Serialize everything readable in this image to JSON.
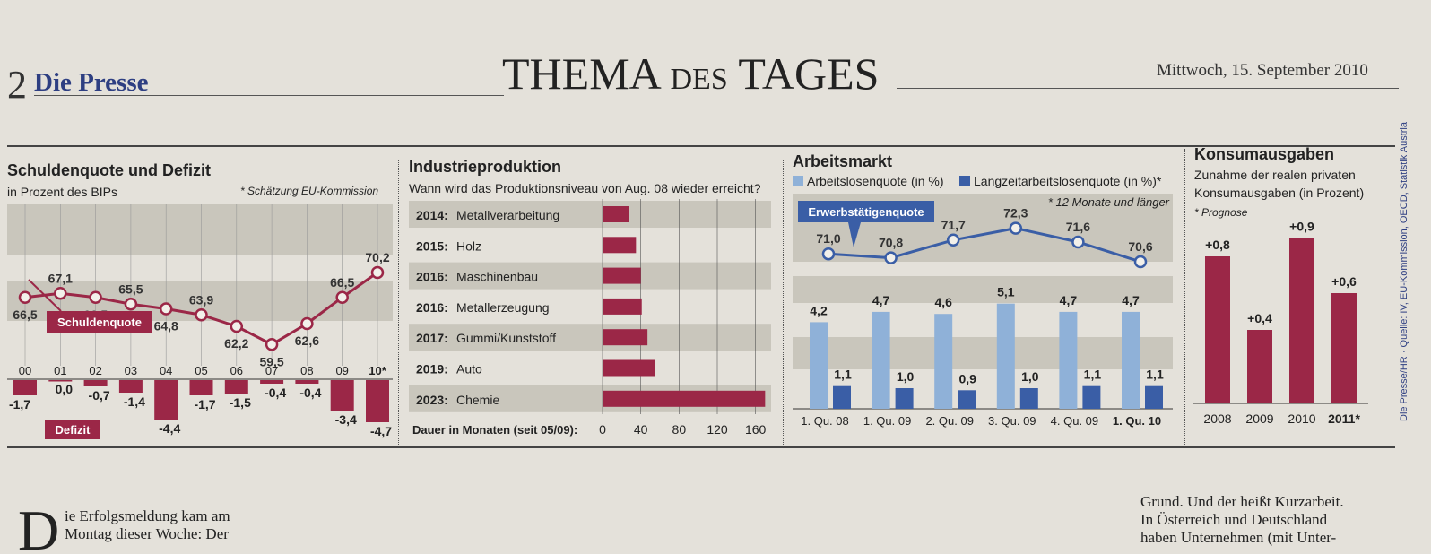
{
  "page": {
    "number": "2",
    "brand": "Die Presse",
    "section_a": "THEMA",
    "section_b": "DES",
    "section_c": "TAGES",
    "date": "Mittwoch, 15. September 2010"
  },
  "source_note": "Die Presse/HR · Quelle: IV, EU-Kommission, OECD, Statistik Austria",
  "colors": {
    "crimson": "#9b2747",
    "lightblue": "#8fb1d8",
    "darkblue": "#3a5ea6",
    "band": "#c9c6bc"
  },
  "chart_data": [
    {
      "type": "line",
      "title": "Schuldenquote und Defizit",
      "subtitle": "in Prozent des BIPs",
      "note": "* Schätzung EU-Kommission",
      "categories": [
        "00",
        "01",
        "02",
        "03",
        "04",
        "05",
        "06",
        "07",
        "08",
        "09",
        "10*"
      ],
      "series": [
        {
          "name": "Schuldenquote",
          "values": [
            66.5,
            67.1,
            66.5,
            65.5,
            64.8,
            63.9,
            62.2,
            59.5,
            62.6,
            66.5,
            70.2
          ],
          "labels": [
            "66,5",
            "67,1",
            "66,5",
            "65,5",
            "64,8",
            "63,9",
            "62,2",
            "59,5",
            "62,6",
            "66,5",
            "70,2"
          ]
        },
        {
          "name": "Defizit",
          "values": [
            -1.7,
            0.0,
            -0.7,
            -1.4,
            -4.4,
            -1.7,
            -1.5,
            -0.4,
            -0.4,
            -3.4,
            -4.7
          ],
          "labels": [
            "-1,7",
            "0,0",
            "-0,7",
            "-1,4",
            "-4,4",
            "-1,7",
            "-1,5",
            "-0,4",
            "-0,4",
            "-3,4",
            "-4,7"
          ]
        }
      ]
    },
    {
      "type": "bar",
      "title": "Industrieproduktion",
      "subtitle": "Wann wird das Produktionsniveau von Aug. 08 wieder erreicht?",
      "xlabel": "Dauer in Monaten (seit 05/09):",
      "xticks": [
        "0",
        "40",
        "80",
        "120",
        "160"
      ],
      "xlim": [
        0,
        180
      ],
      "years": [
        "2014:",
        "2015:",
        "2016:",
        "2016:",
        "2017:",
        "2019:",
        "2023:"
      ],
      "categories": [
        "Metallverarbeitung",
        "Holz",
        "Maschinenbau",
        "Metallerzeugung",
        "Gummi/Kunststoff",
        "Auto",
        "Chemie"
      ],
      "values": [
        28,
        35,
        40,
        41,
        47,
        55,
        170
      ]
    },
    {
      "type": "bar",
      "title": "Arbeitsmarkt",
      "legend": [
        "Arbeitslosenquote (in %)",
        "Langzeitarbeitslosenquote (in %)*"
      ],
      "note": "* 12 Monate und länger",
      "categories": [
        "1. Qu. 08",
        "1. Qu. 09",
        "2. Qu. 09",
        "3. Qu. 09",
        "4. Qu. 09",
        "1. Qu. 10"
      ],
      "series": [
        {
          "name": "Arbeitslosenquote (in %)",
          "values": [
            4.2,
            4.7,
            4.6,
            5.1,
            4.7,
            4.7
          ],
          "labels": [
            "4,2",
            "4,7",
            "4,6",
            "5,1",
            "4,7",
            "4,7"
          ]
        },
        {
          "name": "Langzeitarbeitslosenquote (in %)*",
          "values": [
            1.1,
            1.0,
            0.9,
            1.0,
            1.1,
            1.1
          ],
          "labels": [
            "1,1",
            "1,0",
            "0,9",
            "1,0",
            "1,1",
            "1,1"
          ]
        },
        {
          "name": "Erwerbstätigenquote",
          "values": [
            71.0,
            70.8,
            71.7,
            72.3,
            71.6,
            70.6
          ],
          "labels": [
            "71,0",
            "70,8",
            "71,7",
            "72,3",
            "71,6",
            "70,6"
          ]
        }
      ]
    },
    {
      "type": "bar",
      "title": "Konsumausgaben",
      "subtitle": "Zunahme der realen privaten Konsumausgaben (in Prozent)",
      "subtitle_lines": [
        "Zunahme der realen privaten",
        "Konsumausgaben (in Prozent)"
      ],
      "note": "* Prognose",
      "categories": [
        "2008",
        "2009",
        "2010",
        "2011*"
      ],
      "values": [
        0.8,
        0.4,
        0.9,
        0.6
      ],
      "labels": [
        "+0,8",
        "+0,4",
        "+0,9",
        "+0,6"
      ]
    }
  ],
  "article": {
    "dropcap": "D",
    "left_lines": [
      "ie Erfolgsmeldung kam am",
      "Montag dieser Woche: Der"
    ],
    "right_lines": [
      "Grund. Und der heißt Kurzarbeit.",
      "In Österreich und Deutschland",
      "haben Unternehmen (mit Unter-"
    ]
  }
}
